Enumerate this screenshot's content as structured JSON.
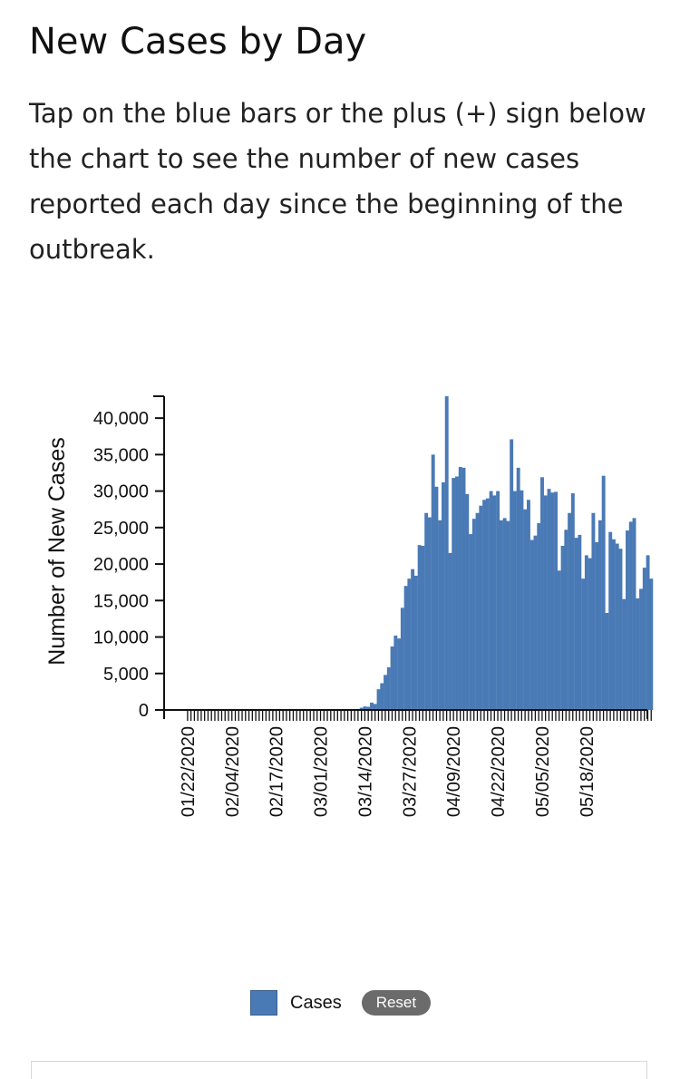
{
  "page": {
    "title": "New Cases by Day",
    "description": "Tap on the blue bars or the plus (+) sign below the chart to see the number of new cases reported each day since the beginning of the outbreak."
  },
  "legend": {
    "series_label": "Cases",
    "reset_label": "Reset"
  },
  "colors": {
    "bar": "#4a7ab5",
    "axis": "#111111"
  },
  "chart_data": {
    "type": "bar",
    "title": "",
    "xlabel": "",
    "ylabel": "Number of New Cases",
    "start_date": "01/22/2020",
    "ylim": [
      0,
      43000
    ],
    "y_ticks": [
      {
        "value": 0,
        "label": "0"
      },
      {
        "value": 5000,
        "label": "5,000"
      },
      {
        "value": 10000,
        "label": "10,000"
      },
      {
        "value": 15000,
        "label": "15,000"
      },
      {
        "value": 20000,
        "label": "20,000"
      },
      {
        "value": 25000,
        "label": "25,000"
      },
      {
        "value": 30000,
        "label": "30,000"
      },
      {
        "value": 35000,
        "label": "35,000"
      },
      {
        "value": 40000,
        "label": "40,000"
      }
    ],
    "x_tick_labels": [
      "01/22/2020",
      "02/04/2020",
      "02/17/2020",
      "03/01/2020",
      "03/14/2020",
      "03/27/2020",
      "04/09/2020",
      "04/22/2020",
      "05/05/2020",
      "05/18/2020"
    ],
    "series": [
      {
        "name": "Cases",
        "values": [
          1,
          0,
          1,
          0,
          3,
          0,
          0,
          0,
          0,
          2,
          1,
          0,
          3,
          0,
          0,
          0,
          0,
          0,
          0,
          0,
          1,
          0,
          0,
          0,
          0,
          0,
          0,
          0,
          0,
          0,
          0,
          0,
          0,
          0,
          0,
          0,
          0,
          0,
          0,
          0,
          0,
          4,
          11,
          8,
          12,
          17,
          22,
          35,
          64,
          135,
          127,
          303,
          480,
          431,
          1007,
          820,
          2840,
          3665,
          4800,
          5850,
          8700,
          10200,
          9800,
          14000,
          17000,
          18000,
          19300,
          18400,
          22600,
          22500,
          27000,
          26400,
          35000,
          30600,
          26000,
          31200,
          43000,
          21500,
          31800,
          32000,
          33300,
          33200,
          29600,
          24100,
          26200,
          27000,
          28000,
          28800,
          29000,
          30000,
          29400,
          30000,
          26000,
          26300,
          25900,
          37100,
          30000,
          33200,
          30100,
          27500,
          28800,
          23300,
          23900,
          25600,
          31900,
          29400,
          30300,
          29800,
          29900,
          19100,
          22500,
          24700,
          27000,
          29700,
          23600,
          24000,
          18000,
          21200,
          20800,
          27000,
          23000,
          26000,
          32100,
          13300,
          24400,
          23400,
          22800,
          22100,
          15200,
          24600,
          25800,
          26300,
          15300,
          16600,
          19500,
          21200,
          18000
        ]
      }
    ]
  }
}
